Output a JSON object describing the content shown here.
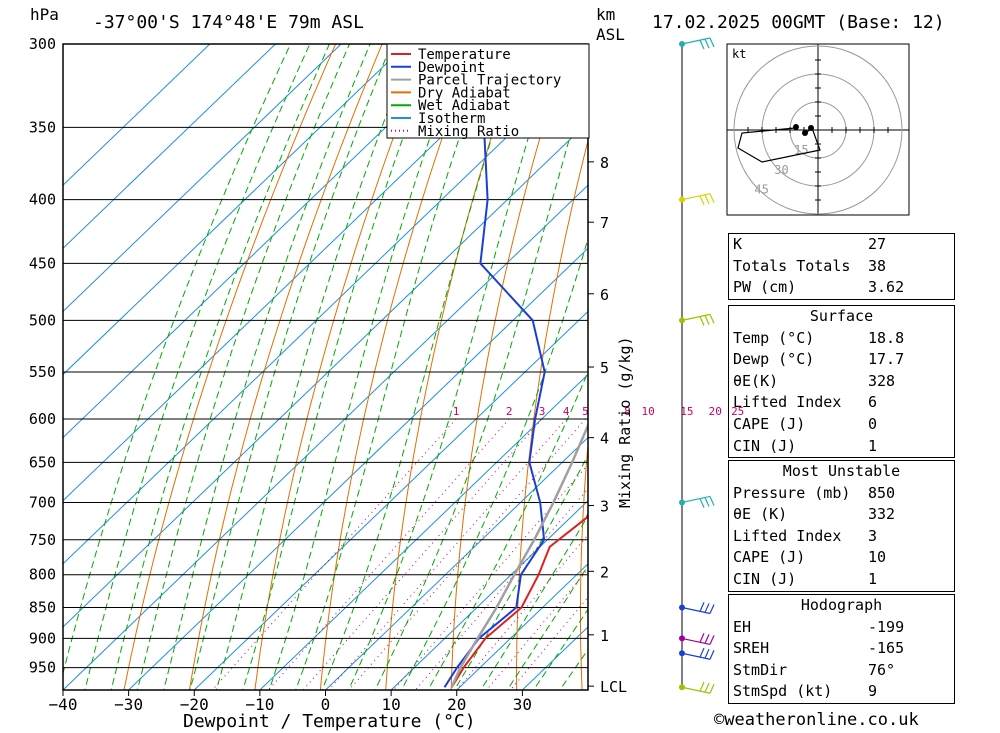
{
  "header": {
    "pressure_unit": "hPa",
    "location": "-37°00'S  174°48'E  79m  ASL",
    "height_unit": "km",
    "height_ref": "ASL",
    "datetime": "17.02.2025  00GMT  (Base: 12)"
  },
  "chart_data": {
    "type": "line",
    "title": "-37°00'S  174°48'E  79m  ASL",
    "xlabel": "Dewpoint / Temperature (°C)",
    "ylabel": "hPa",
    "xlim": [
      -40,
      40
    ],
    "ylim": [
      990,
      300
    ],
    "y_scale": "log",
    "pressure_ticks": [
      300,
      350,
      400,
      450,
      500,
      550,
      600,
      650,
      700,
      750,
      800,
      850,
      900,
      950
    ],
    "temperature_ticks": [
      -40,
      -30,
      -20,
      -10,
      0,
      10,
      20,
      30
    ],
    "height_label": "km ASL",
    "height_ticks": [
      {
        "label": "8",
        "p": 373
      },
      {
        "label": "7",
        "p": 417
      },
      {
        "label": "6",
        "p": 476
      },
      {
        "label": "5",
        "p": 545
      },
      {
        "label": "4",
        "p": 621
      },
      {
        "label": "3",
        "p": 704
      },
      {
        "label": "2",
        "p": 795
      },
      {
        "label": "1",
        "p": 894
      },
      {
        "label": "LCL",
        "p": 983
      }
    ],
    "mixing_ratio_label": "Mixing Ratio (g/kg)",
    "mixing_ratio_values": [
      "1",
      "2",
      "3",
      "4",
      "5",
      "8",
      "10",
      "15",
      "20",
      "25"
    ],
    "legend": {
      "placement": "top-right",
      "entries": [
        {
          "name": "Temperature",
          "color": "#e02020"
        },
        {
          "name": "Dewpoint",
          "color": "#1a3ed6"
        },
        {
          "name": "Parcel Trajectory",
          "color": "#a0a0a0"
        },
        {
          "name": "Dry Adiabat",
          "color": "#e07000"
        },
        {
          "name": "Wet Adiabat",
          "color": "#00aa00"
        },
        {
          "name": "Isotherm",
          "color": "#1e90dd"
        },
        {
          "name": "Mixing Ratio",
          "color": "#cc0066"
        }
      ]
    },
    "series": [
      {
        "name": "Temperature",
        "points": [
          {
            "p": 985,
            "t": 18.8
          },
          {
            "p": 950,
            "t": 17.5
          },
          {
            "p": 900,
            "t": 16.2
          },
          {
            "p": 850,
            "t": 16.8
          },
          {
            "p": 800,
            "t": 14.2
          },
          {
            "p": 760,
            "t": 11.5
          },
          {
            "p": 720,
            "t": 12.5
          },
          {
            "p": 700,
            "t": 11.0
          },
          {
            "p": 650,
            "t": 7.5
          },
          {
            "p": 600,
            "t": 3.0
          },
          {
            "p": 550,
            "t": -2.0
          },
          {
            "p": 500,
            "t": -7.0
          },
          {
            "p": 450,
            "t": -13.0
          },
          {
            "p": 400,
            "t": -21.0
          },
          {
            "p": 365,
            "t": -26.5
          }
        ]
      },
      {
        "name": "Dewpoint",
        "points": [
          {
            "p": 985,
            "t": 17.7
          },
          {
            "p": 950,
            "t": 16.5
          },
          {
            "p": 900,
            "t": 15.2
          },
          {
            "p": 850,
            "t": 16.0
          },
          {
            "p": 800,
            "t": 11.5
          },
          {
            "p": 750,
            "t": 9.5
          },
          {
            "p": 700,
            "t": 3.0
          },
          {
            "p": 650,
            "t": -5.0
          },
          {
            "p": 600,
            "t": -11.0
          },
          {
            "p": 550,
            "t": -17.0
          },
          {
            "p": 500,
            "t": -27.0
          },
          {
            "p": 450,
            "t": -44.0
          },
          {
            "p": 400,
            "t": -53.0
          },
          {
            "p": 350,
            "t": -65.0
          },
          {
            "p": 300,
            "t": -64.0
          }
        ]
      },
      {
        "name": "Parcel Trajectory",
        "points": [
          {
            "p": 985,
            "t": 18.8
          },
          {
            "p": 950,
            "t": 17.0
          },
          {
            "p": 900,
            "t": 15.0
          },
          {
            "p": 850,
            "t": 13.0
          },
          {
            "p": 800,
            "t": 10.5
          },
          {
            "p": 750,
            "t": 8.0
          },
          {
            "p": 700,
            "t": 5.0
          },
          {
            "p": 650,
            "t": 1.5
          },
          {
            "p": 600,
            "t": -2.5
          },
          {
            "p": 550,
            "t": -7.0
          },
          {
            "p": 500,
            "t": -12.5
          },
          {
            "p": 450,
            "t": -19.0
          },
          {
            "p": 400,
            "t": -27.0
          },
          {
            "p": 350,
            "t": -36.0
          },
          {
            "p": 300,
            "t": -47.0
          }
        ]
      }
    ],
    "wind_barbs": [
      {
        "p": 300,
        "color": "#20b0b0"
      },
      {
        "p": 400,
        "color": "#d4d400"
      },
      {
        "p": 500,
        "color": "#a0c000"
      },
      {
        "p": 700,
        "color": "#20b0b0"
      },
      {
        "p": 850,
        "color": "#1a3ed6"
      },
      {
        "p": 900,
        "color": "#a000a0"
      },
      {
        "p": 925,
        "color": "#1a3ed6"
      },
      {
        "p": 985,
        "color": "#a0c000"
      }
    ]
  },
  "hodograph": {
    "unit": "kt",
    "ring_labels": [
      "15",
      "30",
      "45"
    ]
  },
  "indices": {
    "rows": [
      {
        "label": "K",
        "value": "27"
      },
      {
        "label": "Totals Totals",
        "value": "38"
      },
      {
        "label": "PW (cm)",
        "value": "3.62"
      }
    ]
  },
  "surface": {
    "title": "Surface",
    "rows": [
      {
        "label": "Temp (°C)",
        "value": "18.8"
      },
      {
        "label": "Dewp (°C)",
        "value": "17.7"
      },
      {
        "label": "θE(K)",
        "value": "328"
      },
      {
        "label": "Lifted Index",
        "value": "6"
      },
      {
        "label": "CAPE (J)",
        "value": "0"
      },
      {
        "label": "CIN (J)",
        "value": "1"
      }
    ]
  },
  "most_unstable": {
    "title": "Most Unstable",
    "rows": [
      {
        "label": "Pressure (mb)",
        "value": "850"
      },
      {
        "label": "θE (K)",
        "value": "332"
      },
      {
        "label": "Lifted Index",
        "value": "3"
      },
      {
        "label": "CAPE (J)",
        "value": "10"
      },
      {
        "label": "CIN (J)",
        "value": "1"
      }
    ]
  },
  "hodograph_table": {
    "title": "Hodograph",
    "rows": [
      {
        "label": "EH",
        "value": "-199"
      },
      {
        "label": "SREH",
        "value": "-165"
      },
      {
        "label": "StmDir",
        "value": "76°"
      },
      {
        "label": "StmSpd (kt)",
        "value": "9"
      }
    ]
  },
  "footer": {
    "copyright": "©weatheronline.co.uk"
  }
}
